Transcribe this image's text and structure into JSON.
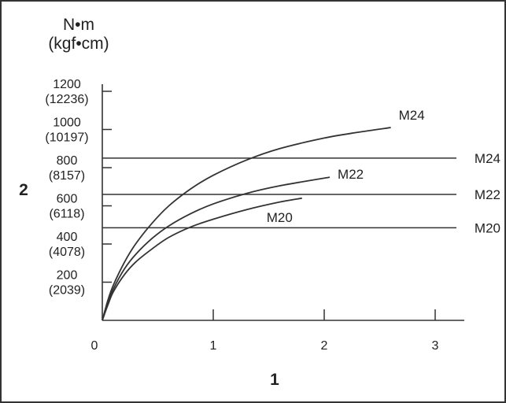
{
  "chart_data": {
    "type": "line",
    "ylabel_lines": [
      "N•m",
      "(kgf•cm)"
    ],
    "ylabel_marker": "2",
    "xlabel_marker": "1",
    "xlim": [
      0,
      3.2
    ],
    "ylim": [
      0,
      1240
    ],
    "x_ticks": [
      {
        "value": 0,
        "label": "0"
      },
      {
        "value": 1,
        "label": "1"
      },
      {
        "value": 2,
        "label": "2"
      },
      {
        "value": 3,
        "label": "3"
      }
    ],
    "y_ticks": [
      {
        "value": 200,
        "label": "200",
        "sublabel": "(2039)"
      },
      {
        "value": 400,
        "label": "400",
        "sublabel": "(4078)"
      },
      {
        "value": 600,
        "label": "600",
        "sublabel": "(6118)"
      },
      {
        "value": 800,
        "label": "800",
        "sublabel": "(8157)"
      },
      {
        "value": 1000,
        "label": "1000",
        "sublabel": "(10197)"
      },
      {
        "value": 1200,
        "label": "1200",
        "sublabel": "(12236)"
      }
    ],
    "series": [
      {
        "name": "M24",
        "x": [
          0,
          0.05,
          0.1,
          0.2,
          0.3,
          0.45,
          0.6,
          0.8,
          1.0,
          1.3,
          1.6,
          2.0,
          2.3,
          2.6
        ],
        "y": [
          0,
          105,
          185,
          305,
          400,
          510,
          600,
          690,
          760,
          840,
          900,
          955,
          985,
          1010
        ]
      },
      {
        "name": "M22",
        "x": [
          0,
          0.05,
          0.1,
          0.2,
          0.3,
          0.45,
          0.6,
          0.8,
          1.0,
          1.3,
          1.6,
          2.05
        ],
        "y": [
          0,
          90,
          165,
          270,
          345,
          430,
          495,
          560,
          610,
          665,
          705,
          750
        ]
      },
      {
        "name": "M20",
        "x": [
          0,
          0.05,
          0.1,
          0.2,
          0.3,
          0.45,
          0.6,
          0.8,
          1.0,
          1.3,
          1.6,
          1.8
        ],
        "y": [
          0,
          80,
          150,
          240,
          305,
          375,
          435,
          490,
          530,
          580,
          620,
          640
        ]
      }
    ],
    "reference_lines": [
      {
        "name": "M24",
        "y": 850
      },
      {
        "name": "M22",
        "y": 660
      },
      {
        "name": "M20",
        "y": 485
      }
    ]
  }
}
